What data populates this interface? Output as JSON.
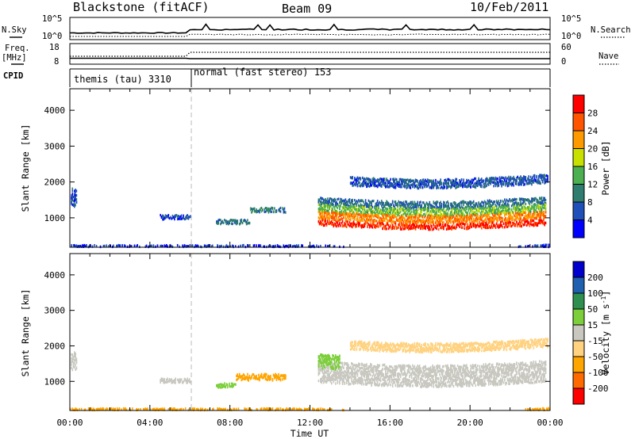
{
  "header": {
    "station": "Blackstone (fitACF)",
    "beam": "Beam 09",
    "date": "10/Feb/2011"
  },
  "param_panels": {
    "nsky_label": "N.Sky",
    "nsearch_label": "N.Search",
    "nsky_ticks": [
      "10^5",
      "10^0"
    ],
    "nsearch_ticks": [
      "10^5",
      "10^0"
    ],
    "freq_label": "Freq.",
    "freq_unit": "[MHz]",
    "freq_ticks": [
      "18",
      "8"
    ],
    "nave_label": "Nave",
    "nave_ticks": [
      "60",
      "0"
    ],
    "cpid_label": "CPID"
  },
  "modes": [
    {
      "label": "themis (tau) 3310",
      "start_hour": 0
    },
    {
      "label": "normal (fast stereo) 153",
      "start_hour": 6
    }
  ],
  "colors": {
    "power_scale": [
      "#0000ff",
      "#1f4fb8",
      "#2e7d6e",
      "#4caf50",
      "#c8e000",
      "#ff9900",
      "#ff5500",
      "#ff0000"
    ],
    "velocity_scale": [
      "#ff0000",
      "#ff6a00",
      "#ffa500",
      "#ffd280",
      "#c8c8c0",
      "#7ccf3a",
      "#2f8f50",
      "#2060b0",
      "#0000cc"
    ]
  },
  "chart_data": [
    {
      "type": "heatmap",
      "title": "Blackstone (fitACF)",
      "parameter": "Power",
      "xlabel": "Time UT",
      "ylabel": "Slant Range [km]",
      "xlim": [
        0,
        24
      ],
      "ylim": [
        180,
        4600
      ],
      "x_ticks": [
        "00:00",
        "04:00",
        "08:00",
        "12:00",
        "16:00",
        "20:00",
        "00:00"
      ],
      "y_ticks": [
        1000,
        2000,
        3000,
        4000
      ],
      "colorbar": {
        "label": "Power [dB]",
        "ticks": [
          "4",
          "8",
          "12",
          "16",
          "20",
          "24",
          "28"
        ],
        "range": [
          0,
          30
        ]
      },
      "regions": [
        {
          "t_start": 0.05,
          "t_end": 0.35,
          "range_center": 1600,
          "range_width": 500,
          "value": 6
        },
        {
          "t_start": 4.5,
          "t_end": 6.0,
          "range_center": 1050,
          "range_width": 120,
          "value": 5
        },
        {
          "t_start": 7.3,
          "t_end": 9.0,
          "range_center": 920,
          "range_width": 120,
          "value": 8
        },
        {
          "t_start": 9.0,
          "t_end": 10.8,
          "range_center": 1250,
          "range_width": 130,
          "value": 9
        },
        {
          "t_start": 12.4,
          "t_end": 23.8,
          "range_center": 1500,
          "range_width": 200,
          "value": 8
        },
        {
          "t_start": 12.4,
          "t_end": 23.8,
          "range_center": 1300,
          "range_width": 220,
          "value": 14
        },
        {
          "t_start": 12.4,
          "t_end": 23.8,
          "range_center": 1100,
          "range_width": 220,
          "value": 22
        },
        {
          "t_start": 12.4,
          "t_end": 23.8,
          "range_center": 900,
          "range_width": 150,
          "value": 27
        },
        {
          "t_start": 14.0,
          "t_end": 23.9,
          "range_center": 2100,
          "range_width": 250,
          "value": 6
        },
        {
          "t_start": 0.0,
          "t_end": 24.0,
          "range_center": 230,
          "range_width": 80,
          "value": 4
        }
      ]
    },
    {
      "type": "heatmap",
      "parameter": "Velocity",
      "xlabel": "Time UT",
      "ylabel": "Slant Range [km]",
      "xlim": [
        0,
        24
      ],
      "ylim": [
        180,
        4600
      ],
      "x_ticks": [
        "00:00",
        "04:00",
        "08:00",
        "12:00",
        "16:00",
        "20:00",
        "00:00"
      ],
      "y_ticks": [
        1000,
        2000,
        3000,
        4000
      ],
      "colorbar": {
        "label": "Velocity [m s^-1]",
        "ticks": [
          "200",
          "100",
          "50",
          "15",
          "-15",
          "-50",
          "-100",
          "-200"
        ]
      },
      "regions": [
        {
          "t_start": 0.05,
          "t_end": 0.35,
          "range_center": 1600,
          "range_width": 500,
          "value": 0
        },
        {
          "t_start": 4.5,
          "t_end": 6.0,
          "range_center": 1050,
          "range_width": 120,
          "value": -10
        },
        {
          "t_start": 7.3,
          "t_end": 8.3,
          "range_center": 920,
          "range_width": 120,
          "value": 30
        },
        {
          "t_start": 8.3,
          "t_end": 10.8,
          "range_center": 1150,
          "range_width": 180,
          "value": -80
        },
        {
          "t_start": 12.4,
          "t_end": 23.8,
          "range_center": 1300,
          "range_width": 600,
          "value": 0
        },
        {
          "t_start": 12.4,
          "t_end": 13.5,
          "range_center": 1600,
          "range_width": 400,
          "value": 30
        },
        {
          "t_start": 14.0,
          "t_end": 23.9,
          "range_center": 2100,
          "range_width": 250,
          "value": -20
        },
        {
          "t_start": 0.0,
          "t_end": 24.0,
          "range_center": 230,
          "range_width": 80,
          "value": -60
        }
      ]
    }
  ]
}
